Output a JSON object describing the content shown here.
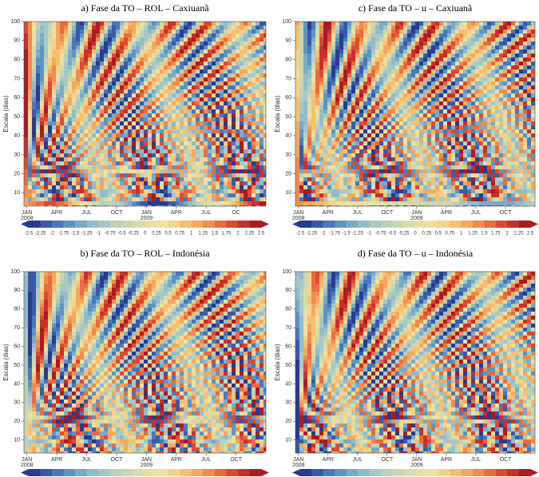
{
  "chart_data": [
    {
      "type": "heatmap",
      "title": "a) Fase da TO – ROL – Caxiuanã",
      "ylabel": "Escala (dias)",
      "xlim": [
        -0.3,
        24
      ],
      "ylim": [
        3,
        100
      ],
      "yticks": [
        10,
        20,
        30,
        40,
        50,
        60,
        70,
        80,
        90,
        100
      ],
      "xticks": [
        {
          "value": 0,
          "label": "JAN"
        },
        {
          "value": 3,
          "label": "APR"
        },
        {
          "value": 6,
          "label": "JUL"
        },
        {
          "value": 9,
          "label": "OCT"
        },
        {
          "value": 12,
          "label": "JAN"
        },
        {
          "value": 15,
          "label": "APR"
        },
        {
          "value": 18,
          "label": "JUL"
        },
        {
          "value": 21,
          "label": "OC"
        }
      ],
      "year_labels": [
        {
          "value": 0,
          "label": "2008"
        },
        {
          "value": 12,
          "label": "2009"
        }
      ],
      "clim": [
        -2.5,
        2.5
      ],
      "colorbar_ticks": [
        -2.5,
        -2.25,
        -2,
        -1.75,
        -1.5,
        -1.25,
        -1,
        -0.75,
        -0.5,
        -0.25,
        0,
        0.25,
        0.5,
        0.75,
        1,
        1.25,
        1.5,
        1.75,
        2,
        2.25,
        2.5
      ],
      "colorbar_colors": [
        "#2a3a8c",
        "#3a5aa8",
        "#4a78b8",
        "#5e94c4",
        "#7aaac8",
        "#92bccb",
        "#a8c8c4",
        "#bcd0bc",
        "#ccd6b0",
        "#d8dcaa",
        "#e6e0a6",
        "#f0e0a0",
        "#f4d38a",
        "#f6c074",
        "#f4a860",
        "#ef8c4e",
        "#e86c40",
        "#dc4a34",
        "#c8302c",
        "#a81c24"
      ]
    },
    {
      "type": "heatmap",
      "title": "c) Fase da TO – u – Caxiuanã",
      "ylabel": "Escala (dias)",
      "xlim": [
        -0.3,
        24
      ],
      "ylim": [
        3,
        100
      ],
      "yticks": [
        10,
        20,
        30,
        40,
        50,
        60,
        70,
        80,
        90,
        100
      ],
      "xticks": [
        {
          "value": 0,
          "label": "JAN"
        },
        {
          "value": 3,
          "label": "APR"
        },
        {
          "value": 6,
          "label": "JUL"
        },
        {
          "value": 9,
          "label": "OCT"
        },
        {
          "value": 12,
          "label": "JAN"
        },
        {
          "value": 15,
          "label": "APR"
        },
        {
          "value": 18,
          "label": "JUL"
        },
        {
          "value": 21,
          "label": "OCT"
        }
      ],
      "year_labels": [
        {
          "value": 0,
          "label": "2008"
        },
        {
          "value": 12,
          "label": "2009"
        }
      ],
      "clim": [
        -2.5,
        2.5
      ],
      "colorbar_ticks": [
        -2.5,
        -2.25,
        -2,
        -1.75,
        -1.5,
        -1.25,
        -1,
        -0.75,
        -0.5,
        -0.25,
        0,
        0.25,
        0.5,
        0.75,
        1,
        1.25,
        1.5,
        1.75,
        2,
        2.25,
        2.5
      ],
      "colorbar_colors": [
        "#2a3a8c",
        "#3a5aa8",
        "#4a78b8",
        "#5e94c4",
        "#7aaac8",
        "#92bccb",
        "#a8c8c4",
        "#bcd0bc",
        "#ccd6b0",
        "#d8dcaa",
        "#e6e0a6",
        "#f0e0a0",
        "#f4d38a",
        "#f6c074",
        "#f4a860",
        "#ef8c4e",
        "#e86c40",
        "#dc4a34",
        "#c8302c",
        "#a81c24"
      ]
    },
    {
      "type": "heatmap",
      "title": "b) Fase da TO – ROL – Indonésia",
      "ylabel": "Escala (dias)",
      "xlim": [
        -0.3,
        24
      ],
      "ylim": [
        3,
        100
      ],
      "yticks": [
        10,
        20,
        30,
        40,
        50,
        60,
        70,
        80,
        90,
        100
      ],
      "xticks": [
        {
          "value": 0,
          "label": "JAN"
        },
        {
          "value": 3,
          "label": "APR"
        },
        {
          "value": 6,
          "label": "JUL"
        },
        {
          "value": 9,
          "label": "OCT"
        },
        {
          "value": 12,
          "label": "JAN"
        },
        {
          "value": 15,
          "label": "APR"
        },
        {
          "value": 18,
          "label": "JUL"
        },
        {
          "value": 21,
          "label": "OCT"
        }
      ],
      "year_labels": [
        {
          "value": 0,
          "label": "2008"
        },
        {
          "value": 12,
          "label": "2009"
        }
      ],
      "clim": [
        -2.5,
        2.5
      ],
      "colorbar_colors": [
        "#2a3a8c",
        "#3a5aa8",
        "#4a78b8",
        "#5e94c4",
        "#7aaac8",
        "#92bccb",
        "#a8c8c4",
        "#bcd0bc",
        "#ccd6b0",
        "#d8dcaa",
        "#e6e0a6",
        "#f0e0a0",
        "#f4d38a",
        "#f6c074",
        "#f4a860",
        "#ef8c4e",
        "#e86c40",
        "#dc4a34",
        "#c8302c",
        "#a81c24"
      ]
    },
    {
      "type": "heatmap",
      "title": "d) Fase da TO – u – Indonésia",
      "ylabel": "Escala (dias)",
      "xlim": [
        -0.3,
        24
      ],
      "ylim": [
        3,
        100
      ],
      "yticks": [
        10,
        20,
        30,
        40,
        50,
        60,
        70,
        80,
        90,
        100
      ],
      "xticks": [
        {
          "value": 0,
          "label": "JAN"
        },
        {
          "value": 3,
          "label": "APR"
        },
        {
          "value": 6,
          "label": "JUL"
        },
        {
          "value": 9,
          "label": "OCT"
        },
        {
          "value": 12,
          "label": "JAN"
        },
        {
          "value": 15,
          "label": "APR"
        },
        {
          "value": 18,
          "label": "JUL"
        },
        {
          "value": 21,
          "label": "OCT"
        }
      ],
      "year_labels": [
        {
          "value": 0,
          "label": "2008"
        },
        {
          "value": 12,
          "label": "2009"
        }
      ],
      "clim": [
        -2.5,
        2.5
      ],
      "colorbar_colors": [
        "#2a3a8c",
        "#3a5aa8",
        "#4a78b8",
        "#5e94c4",
        "#7aaac8",
        "#92bccb",
        "#a8c8c4",
        "#bcd0bc",
        "#ccd6b0",
        "#d8dcaa",
        "#e6e0a6",
        "#f0e0a0",
        "#f4d38a",
        "#f6c074",
        "#f4a860",
        "#ef8c4e",
        "#e86c40",
        "#dc4a34",
        "#c8302c",
        "#a81c24"
      ]
    }
  ]
}
